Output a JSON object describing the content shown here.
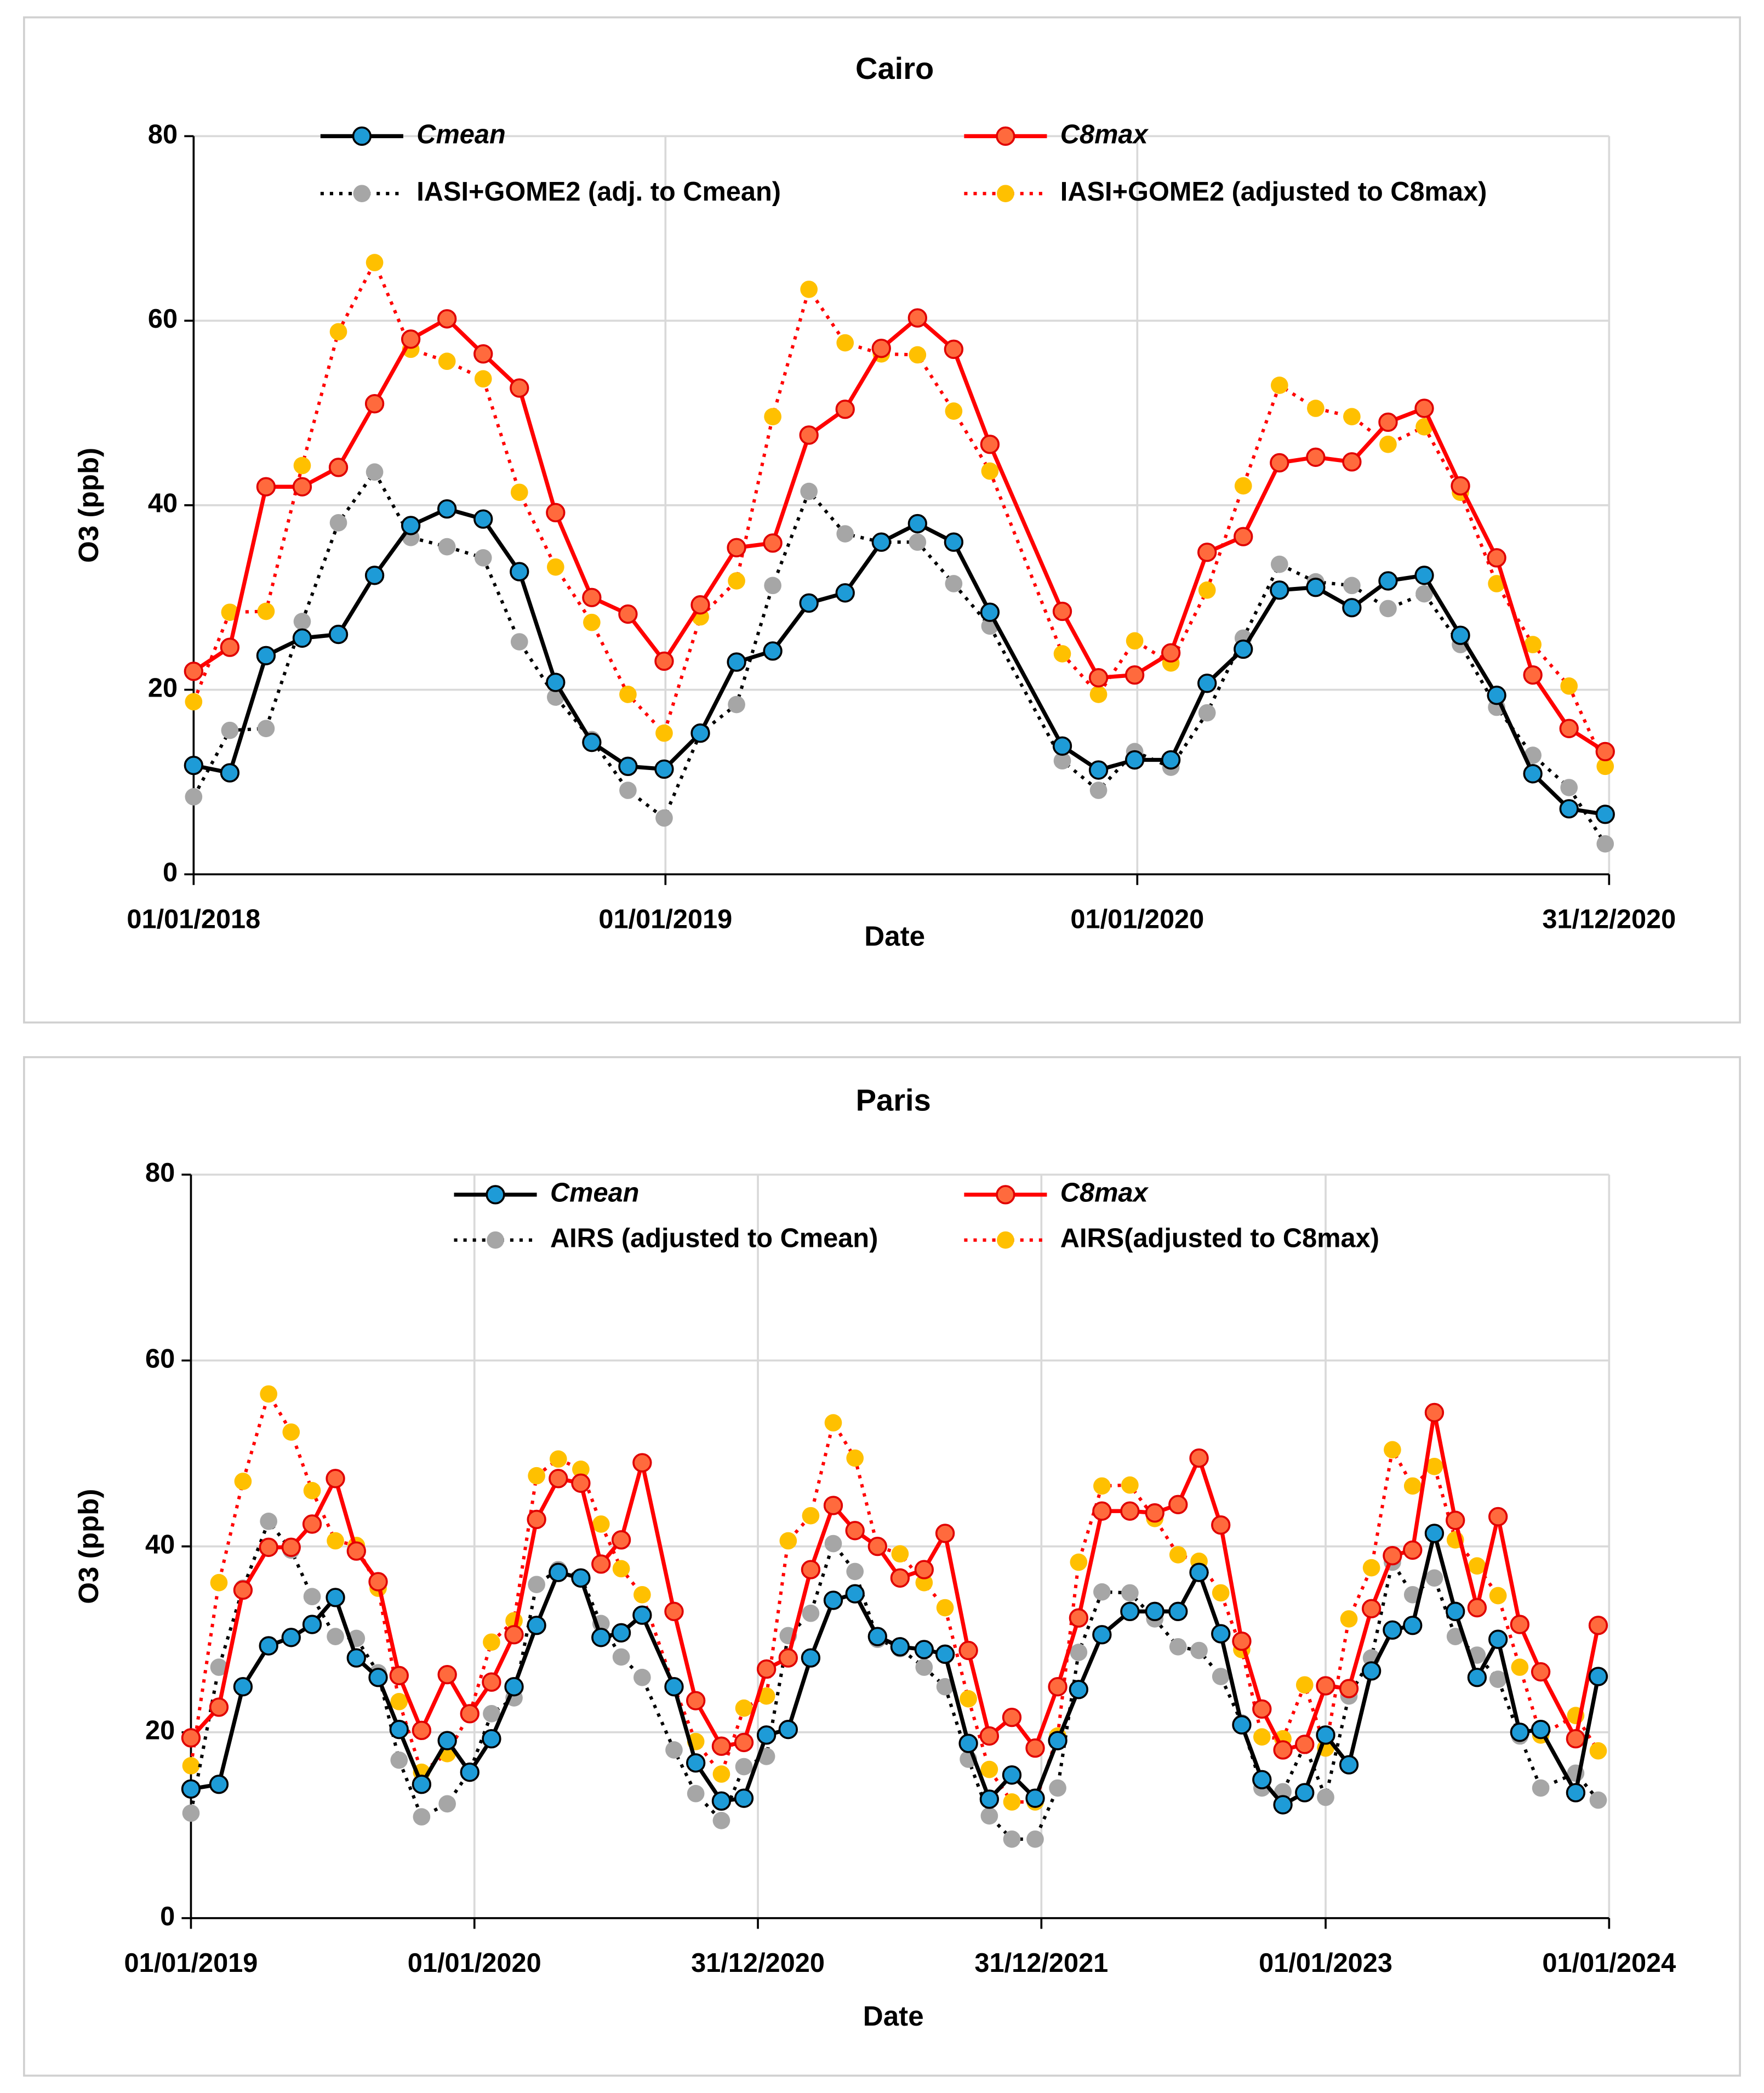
{
  "chart_data": [
    {
      "type": "line",
      "title": "Cairo",
      "x_label": "Date",
      "y_label": "O3 (ppb)",
      "x": [
        "01/01/2018",
        "29/01/2018",
        "26/02/2018",
        "26/03/2018",
        "23/04/2018",
        "21/05/2018",
        "18/06/2018",
        "16/07/2018",
        "13/08/2018",
        "10/09/2018",
        "08/10/2018",
        "05/11/2018",
        "03/12/2018",
        "31/12/2018",
        "28/01/2019",
        "25/02/2019",
        "25/03/2019",
        "22/04/2019",
        "20/05/2019",
        "17/06/2019",
        "15/07/2019",
        "12/08/2019",
        "09/09/2019",
        "04/11/2019",
        "02/12/2019",
        "30/12/2019",
        "27/01/2020",
        "24/02/2020",
        "23/03/2020",
        "20/04/2020",
        "18/05/2020",
        "15/06/2020",
        "13/07/2020",
        "10/08/2020",
        "07/09/2020",
        "05/10/2020",
        "02/11/2020",
        "30/11/2020",
        "28/12/2020"
      ],
      "xlim": [
        "01/01/2018",
        "31/12/2020"
      ],
      "xticks": [
        "01/01/2018",
        "01/01/2019",
        "01/01/2020",
        "31/12/2020"
      ],
      "ylim": [
        0,
        80
      ],
      "yticks": [
        0,
        20,
        40,
        60,
        80
      ],
      "grid": true,
      "series": [
        {
          "name": "Cmean",
          "color": "#000000",
          "marker_color": "#1e9bd7",
          "marker_edge": "#000000",
          "line_style": "solid",
          "legend_style": "italic",
          "values": [
            11.8,
            11,
            23.7,
            25.6,
            26,
            32.4,
            37.8,
            39.6,
            38.5,
            32.8,
            20.8,
            14.3,
            11.7,
            11.4,
            15.3,
            23,
            24.2,
            29.4,
            30.5,
            36,
            38,
            36,
            28.4,
            13.9,
            11.3,
            12.4,
            12.4,
            20.7,
            24.4,
            30.8,
            31.1,
            28.9,
            31.8,
            32.4,
            25.9,
            19.4,
            10.9,
            7.1,
            6.5
          ]
        },
        {
          "name": "C8max",
          "color": "#ff0000",
          "marker_color": "#ff6a3d",
          "marker_edge": "#e00000",
          "line_style": "solid",
          "legend_style": "italic",
          "values": [
            22,
            24.6,
            42,
            42,
            44.1,
            51,
            58,
            60.2,
            56.4,
            52.7,
            39.2,
            30,
            28.2,
            23.1,
            29.2,
            35.4,
            35.9,
            47.6,
            50.4,
            57,
            60.3,
            56.9,
            46.6,
            28.5,
            21.3,
            21.6,
            24,
            34.9,
            36.6,
            44.6,
            45.2,
            44.7,
            49,
            50.5,
            42.1,
            34.3,
            21.6,
            15.8,
            13.3
          ]
        },
        {
          "name": "IASI+GOME2 (adj. to Cmean)",
          "color": "#000000",
          "marker_color": "#a6a6a6",
          "marker_edge": "none",
          "line_style": "dotted",
          "legend_style": "normal",
          "values": [
            8.4,
            15.6,
            15.8,
            27.4,
            38.1,
            43.6,
            36.5,
            35.5,
            34.3,
            25.2,
            19.2,
            14.6,
            9.1,
            6.1,
            15.3,
            18.4,
            31.3,
            41.5,
            36.9,
            36,
            36,
            31.5,
            26.9,
            12.3,
            9.1,
            13.3,
            11.6,
            17.5,
            25.6,
            33.6,
            31.7,
            31.3,
            28.8,
            30.4,
            24.9,
            18.1,
            12.9,
            9.4,
            3.3
          ]
        },
        {
          "name": "IASI+GOME2 (adjusted to C8max)",
          "color": "#ff0000",
          "marker_color": "#ffc000",
          "marker_edge": "none",
          "line_style": "dotted",
          "legend_style": "normal",
          "values": [
            18.7,
            28.4,
            28.5,
            44.3,
            58.8,
            66.3,
            56.9,
            55.6,
            53.7,
            41.4,
            33.3,
            27.3,
            19.5,
            15.3,
            27.9,
            31.8,
            49.6,
            63.4,
            57.6,
            56.4,
            56.3,
            50.2,
            43.7,
            23.9,
            19.5,
            25.3,
            22.9,
            30.8,
            42.1,
            53,
            50.5,
            49.6,
            46.6,
            48.5,
            41.4,
            31.5,
            24.9,
            20.4,
            11.7
          ]
        }
      ]
    },
    {
      "type": "line",
      "title": "Paris",
      "x_label": "Date",
      "y_label": "O3 (ppb)",
      "x": [
        "01/01/2019",
        "06/02/2019",
        "09/03/2019",
        "11/04/2019",
        "10/05/2019",
        "06/06/2019",
        "06/07/2019",
        "02/08/2019",
        "30/08/2019",
        "26/09/2019",
        "25/10/2019",
        "27/11/2019",
        "26/12/2019",
        "23/01/2020",
        "21/02/2020",
        "21/03/2020",
        "18/04/2020",
        "17/05/2020",
        "12/06/2020",
        "08/07/2020",
        "04/08/2020",
        "14/09/2020",
        "12/10/2020",
        "14/11/2020",
        "13/12/2020",
        "11/01/2021",
        "08/02/2021",
        "09/03/2021",
        "07/04/2021",
        "05/05/2021",
        "03/06/2021",
        "02/07/2021",
        "02/08/2021",
        "29/08/2021",
        "28/09/2021",
        "25/10/2021",
        "23/11/2021",
        "23/12/2021",
        "21/01/2022",
        "17/02/2022",
        "19/03/2022",
        "24/04/2022",
        "26/05/2022",
        "25/06/2022",
        "22/07/2022",
        "19/08/2022",
        "15/09/2022",
        "11/10/2022",
        "07/11/2022",
        "05/12/2022",
        "01/01/2023",
        "31/01/2023",
        "01/03/2023",
        "28/03/2023",
        "23/04/2023",
        "21/05/2023",
        "17/06/2023",
        "15/07/2023",
        "11/08/2023",
        "08/09/2023",
        "05/10/2023",
        "19/11/2023",
        "18/12/2023"
      ],
      "xlim": [
        "01/01/2019",
        "01/01/2024"
      ],
      "xticks": [
        "01/01/2019",
        "01/01/2020",
        "31/12/2020",
        "31/12/2021",
        "01/01/2023",
        "01/01/2024"
      ],
      "ylim": [
        0,
        80
      ],
      "yticks": [
        0,
        20,
        40,
        60,
        80
      ],
      "grid": true,
      "series": [
        {
          "name": "Cmean",
          "color": "#000000",
          "marker_color": "#1e9bd7",
          "marker_edge": "#000000",
          "line_style": "solid",
          "legend_style": "italic",
          "values": [
            13.9,
            14.4,
            24.9,
            29.3,
            30.2,
            31.6,
            34.5,
            28,
            25.9,
            20.3,
            14.4,
            19.1,
            15.7,
            19.3,
            24.9,
            31.5,
            37.2,
            36.6,
            30.2,
            30.7,
            32.6,
            24.9,
            16.7,
            12.6,
            12.9,
            19.7,
            20.3,
            28,
            34.2,
            34.9,
            30.3,
            29.2,
            28.9,
            28.4,
            18.8,
            12.8,
            15.4,
            12.9,
            19.1,
            24.6,
            30.5,
            33,
            33,
            33,
            37.2,
            30.6,
            20.8,
            14.9,
            12.2,
            13.5,
            19.7,
            16.5,
            26.6,
            31,
            31.5,
            41.4,
            33,
            25.9,
            30,
            20,
            20.3,
            13.5,
            26
          ]
        },
        {
          "name": "C8max",
          "color": "#ff0000",
          "marker_color": "#ff6a3d",
          "marker_edge": "#e00000",
          "line_style": "solid",
          "legend_style": "italic",
          "values": [
            19.4,
            22.7,
            35.3,
            39.9,
            39.9,
            42.4,
            47.3,
            39.5,
            36.2,
            26.1,
            20.2,
            26.2,
            22,
            25.4,
            30.5,
            42.9,
            47.3,
            46.8,
            38.1,
            40.7,
            49,
            33,
            23.4,
            18.5,
            18.9,
            26.8,
            28,
            37.5,
            44.4,
            41.7,
            40,
            36.6,
            37.5,
            41.4,
            28.8,
            19.6,
            21.6,
            18.3,
            24.9,
            32.3,
            43.8,
            43.8,
            43.6,
            44.5,
            49.5,
            42.3,
            29.8,
            22.5,
            18.1,
            18.7,
            25,
            24.7,
            33.3,
            39,
            39.6,
            54.4,
            42.8,
            33.4,
            43.2,
            31.6,
            26.5,
            19.3,
            31.5
          ]
        },
        {
          "name": "AIRS (adjusted to Cmean)",
          "color": "#000000",
          "marker_color": "#a6a6a6",
          "marker_edge": "none",
          "line_style": "dotted",
          "legend_style": "normal",
          "values": [
            11.3,
            27,
            35.5,
            42.7,
            39.6,
            34.6,
            30.3,
            30.1,
            26.4,
            17,
            10.9,
            12.3,
            15.8,
            22,
            23.7,
            35.9,
            37.5,
            36.7,
            31.7,
            28.1,
            25.9,
            18.1,
            13.4,
            10.5,
            16.3,
            17.4,
            30.4,
            32.8,
            40.3,
            37.3,
            30,
            29,
            27,
            24.9,
            17.1,
            11,
            8.5,
            8.5,
            14,
            28.6,
            35.1,
            35,
            32.2,
            29.2,
            28.8,
            26,
            21,
            14,
            13.6,
            18.6,
            13,
            23.9,
            28,
            38.3,
            34.8,
            36.6,
            30.3,
            28.3,
            25.7,
            19.6,
            14,
            15.6,
            12.7
          ]
        },
        {
          "name": "AIRS(adjusted to C8max)",
          "color": "#ff0000",
          "marker_color": "#ffc000",
          "marker_edge": "none",
          "line_style": "dotted",
          "legend_style": "normal",
          "values": [
            16.4,
            36.1,
            47,
            56.4,
            52.3,
            46,
            40.6,
            40.1,
            35.5,
            23.3,
            15.7,
            17.7,
            22,
            29.7,
            32,
            47.6,
            49.4,
            48.3,
            42.4,
            37.6,
            34.8,
            24.9,
            19,
            15.5,
            22.6,
            23.9,
            40.6,
            43.3,
            53.3,
            49.5,
            40,
            39.2,
            36.1,
            33.4,
            23.6,
            16,
            12.5,
            12.5,
            19.6,
            38.3,
            46.5,
            46.6,
            43,
            39.1,
            38.4,
            35,
            28.9,
            19.5,
            19.3,
            25.1,
            18.3,
            32.2,
            37.7,
            50.4,
            46.5,
            48.6,
            40.7,
            37.9,
            34.7,
            27,
            19.7,
            21.8,
            18
          ]
        }
      ]
    }
  ]
}
